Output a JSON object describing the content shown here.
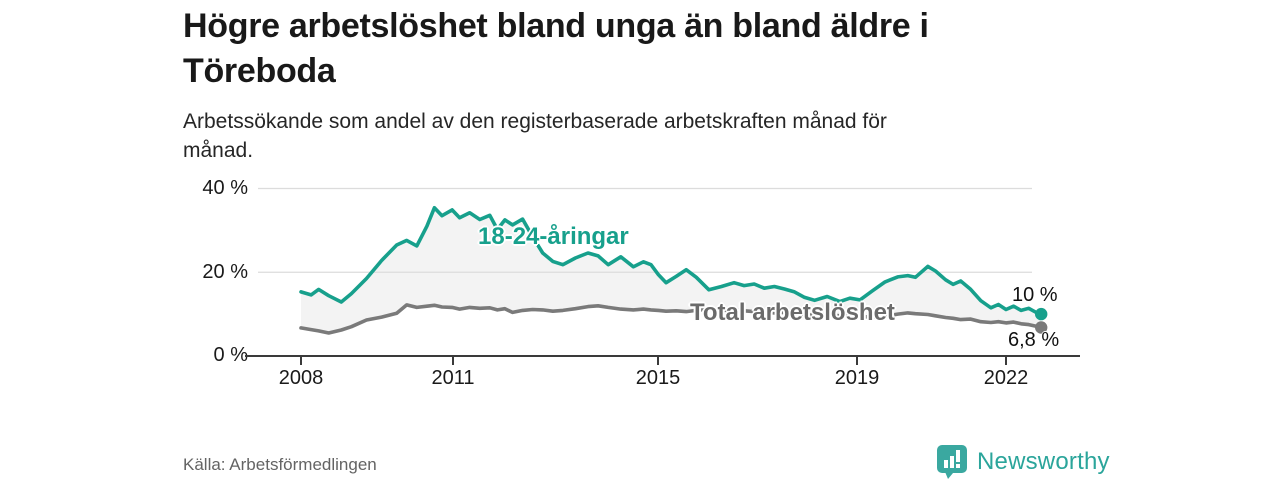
{
  "header": {
    "title_lines": [
      "Högre arbetslöshet bland unga än bland äldre i",
      "Töreboda"
    ],
    "subtitle_lines": [
      "Arbetssökande som andel av den registerbaserade arbetskraften månad för",
      "månad."
    ]
  },
  "footer": {
    "source": "Källa: Arbetsförmedlingen",
    "brand": "Newsworthy",
    "brand_icon": "newsworthy-pin-barchart-icon"
  },
  "colors": {
    "accent_teal": "#17a08c",
    "total_gray": "#7a7a7a",
    "label_gray": "#6b6b6b",
    "band_fill": "#f3f3f3",
    "gridline": "#dcdcdc",
    "axis": "#3a3a3a",
    "brand_teal": "#2ba59b"
  },
  "chart_data": {
    "type": "line",
    "title": "Högre arbetslöshet bland unga än bland äldre i Töreboda",
    "subtitle": "Arbetssökande som andel av den registerbaserade arbetskraften månad för månad.",
    "unit": "%",
    "grid": "horizontal",
    "legend_position": "inline-labels",
    "ylim": [
      0,
      40
    ],
    "xlim": [
      2007.9,
      2023.3
    ],
    "y_ticks": [
      {
        "label": "40 %",
        "value": 40
      },
      {
        "label": "20 %",
        "value": 20
      },
      {
        "label": "0 %",
        "value": 0
      }
    ],
    "x_ticks": [
      {
        "label": "2008",
        "year": 2008
      },
      {
        "label": "2011",
        "year": 2011
      },
      {
        "label": "2015",
        "year": 2015
      },
      {
        "label": "2019",
        "year": 2019
      },
      {
        "label": "2022",
        "year": 2022
      }
    ],
    "fill_between": "#f3f3f3",
    "x": [
      2008.0,
      2008.2,
      2008.35,
      2008.55,
      2008.8,
      2009.0,
      2009.3,
      2009.6,
      2009.9,
      2010.1,
      2010.3,
      2010.5,
      2010.65,
      2010.8,
      2011.0,
      2011.15,
      2011.35,
      2011.55,
      2011.75,
      2011.9,
      2012.05,
      2012.2,
      2012.4,
      2012.6,
      2012.8,
      2013.0,
      2013.2,
      2013.45,
      2013.7,
      2013.9,
      2014.1,
      2014.35,
      2014.6,
      2014.8,
      2014.95,
      2015.1,
      2015.25,
      2015.45,
      2015.65,
      2015.85,
      2016.1,
      2016.35,
      2016.6,
      2016.8,
      2017.0,
      2017.2,
      2017.4,
      2017.6,
      2017.8,
      2018.0,
      2018.2,
      2018.45,
      2018.7,
      2018.9,
      2019.1,
      2019.35,
      2019.6,
      2019.85,
      2020.05,
      2020.2,
      2020.45,
      2020.6,
      2020.8,
      2020.95,
      2021.1,
      2021.3,
      2021.5,
      2021.7,
      2021.85,
      2022.0,
      2022.15,
      2022.3,
      2022.45,
      2022.6,
      2022.7
    ],
    "series": [
      {
        "name": "18-24-åringar",
        "color": "#17a08c",
        "end_label": "10 %",
        "values": [
          15.3,
          14.6,
          15.9,
          14.4,
          12.9,
          14.9,
          18.5,
          22.8,
          26.5,
          27.6,
          26.3,
          31.0,
          35.4,
          33.5,
          34.9,
          33.0,
          34.2,
          32.6,
          33.6,
          30.2,
          32.5,
          31.3,
          32.7,
          28.5,
          24.6,
          22.6,
          21.8,
          23.4,
          24.6,
          23.9,
          21.8,
          23.7,
          21.3,
          22.5,
          21.8,
          19.4,
          17.5,
          19.0,
          20.6,
          18.8,
          15.8,
          16.6,
          17.5,
          16.8,
          17.2,
          16.2,
          16.6,
          16.0,
          15.3,
          14.0,
          13.3,
          14.2,
          13.0,
          13.8,
          13.4,
          15.6,
          17.7,
          18.9,
          19.2,
          18.8,
          21.4,
          20.3,
          18.2,
          17.1,
          17.9,
          15.9,
          13.2,
          11.5,
          12.3,
          11.1,
          11.9,
          10.9,
          11.4,
          10.4,
          10.0
        ]
      },
      {
        "name": "Total arbetslöshet",
        "color": "#7a7a7a",
        "end_label": "6,8 %",
        "values": [
          6.7,
          6.3,
          6.0,
          5.5,
          6.2,
          7.0,
          8.6,
          9.3,
          10.2,
          12.2,
          11.6,
          11.9,
          12.1,
          11.7,
          11.6,
          11.2,
          11.6,
          11.4,
          11.5,
          11.0,
          11.3,
          10.4,
          10.9,
          11.1,
          11.0,
          10.7,
          10.9,
          11.3,
          11.8,
          12.0,
          11.6,
          11.2,
          11.0,
          11.2,
          11.0,
          10.9,
          10.7,
          10.8,
          10.6,
          10.9,
          11.2,
          10.9,
          11.0,
          10.8,
          10.6,
          10.5,
          10.3,
          10.4,
          10.1,
          9.9,
          9.7,
          9.9,
          9.6,
          9.7,
          9.4,
          9.3,
          9.5,
          10.0,
          10.3,
          10.1,
          9.9,
          9.6,
          9.2,
          9.0,
          8.7,
          8.8,
          8.2,
          8.0,
          8.2,
          7.9,
          8.1,
          7.7,
          7.5,
          7.1,
          6.8
        ]
      }
    ]
  }
}
